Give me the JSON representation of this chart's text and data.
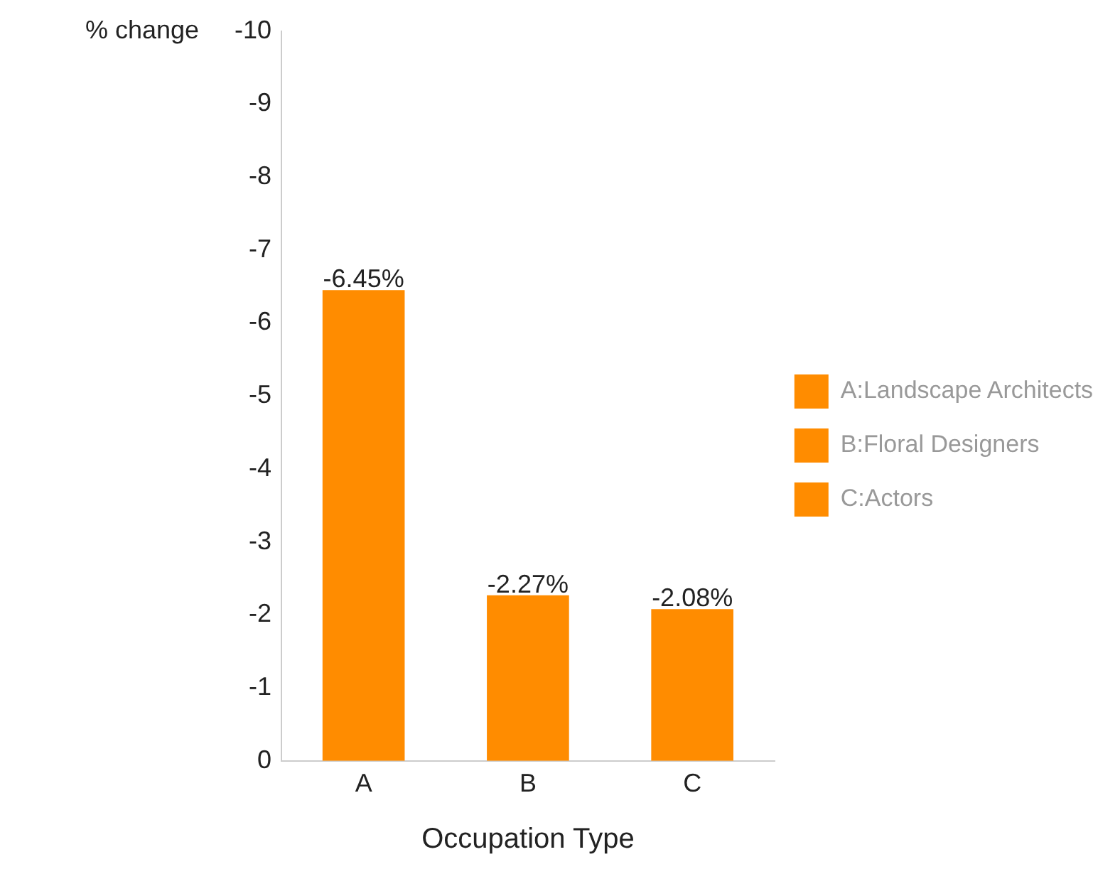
{
  "chart_data": {
    "type": "bar",
    "xlabel": "Occupation Type",
    "ylabel": "% change",
    "categories": [
      "A",
      "B",
      "C"
    ],
    "stacked": true,
    "series": [
      {
        "name": "A:Landscape Architects",
        "color": "#ff8c00",
        "values": [
          -6.45,
          null,
          null
        ],
        "value_labels": [
          "-6.45%",
          null,
          null
        ]
      },
      {
        "name": "B:Floral Designers",
        "color": "#ff8c00",
        "values": [
          null,
          -2.27,
          null
        ],
        "value_labels": [
          null,
          "-2.27%",
          null
        ]
      },
      {
        "name": "C:Actors",
        "color": "#ff8c00",
        "values": [
          null,
          null,
          -2.08
        ],
        "value_labels": [
          null,
          null,
          "-2.08%"
        ]
      }
    ],
    "ylim": [
      0,
      -10
    ],
    "yticks": [
      0,
      -1,
      -2,
      -3,
      -4,
      -5,
      -6,
      -7,
      -8,
      -9,
      -10
    ],
    "grid": false,
    "legend": "right"
  }
}
